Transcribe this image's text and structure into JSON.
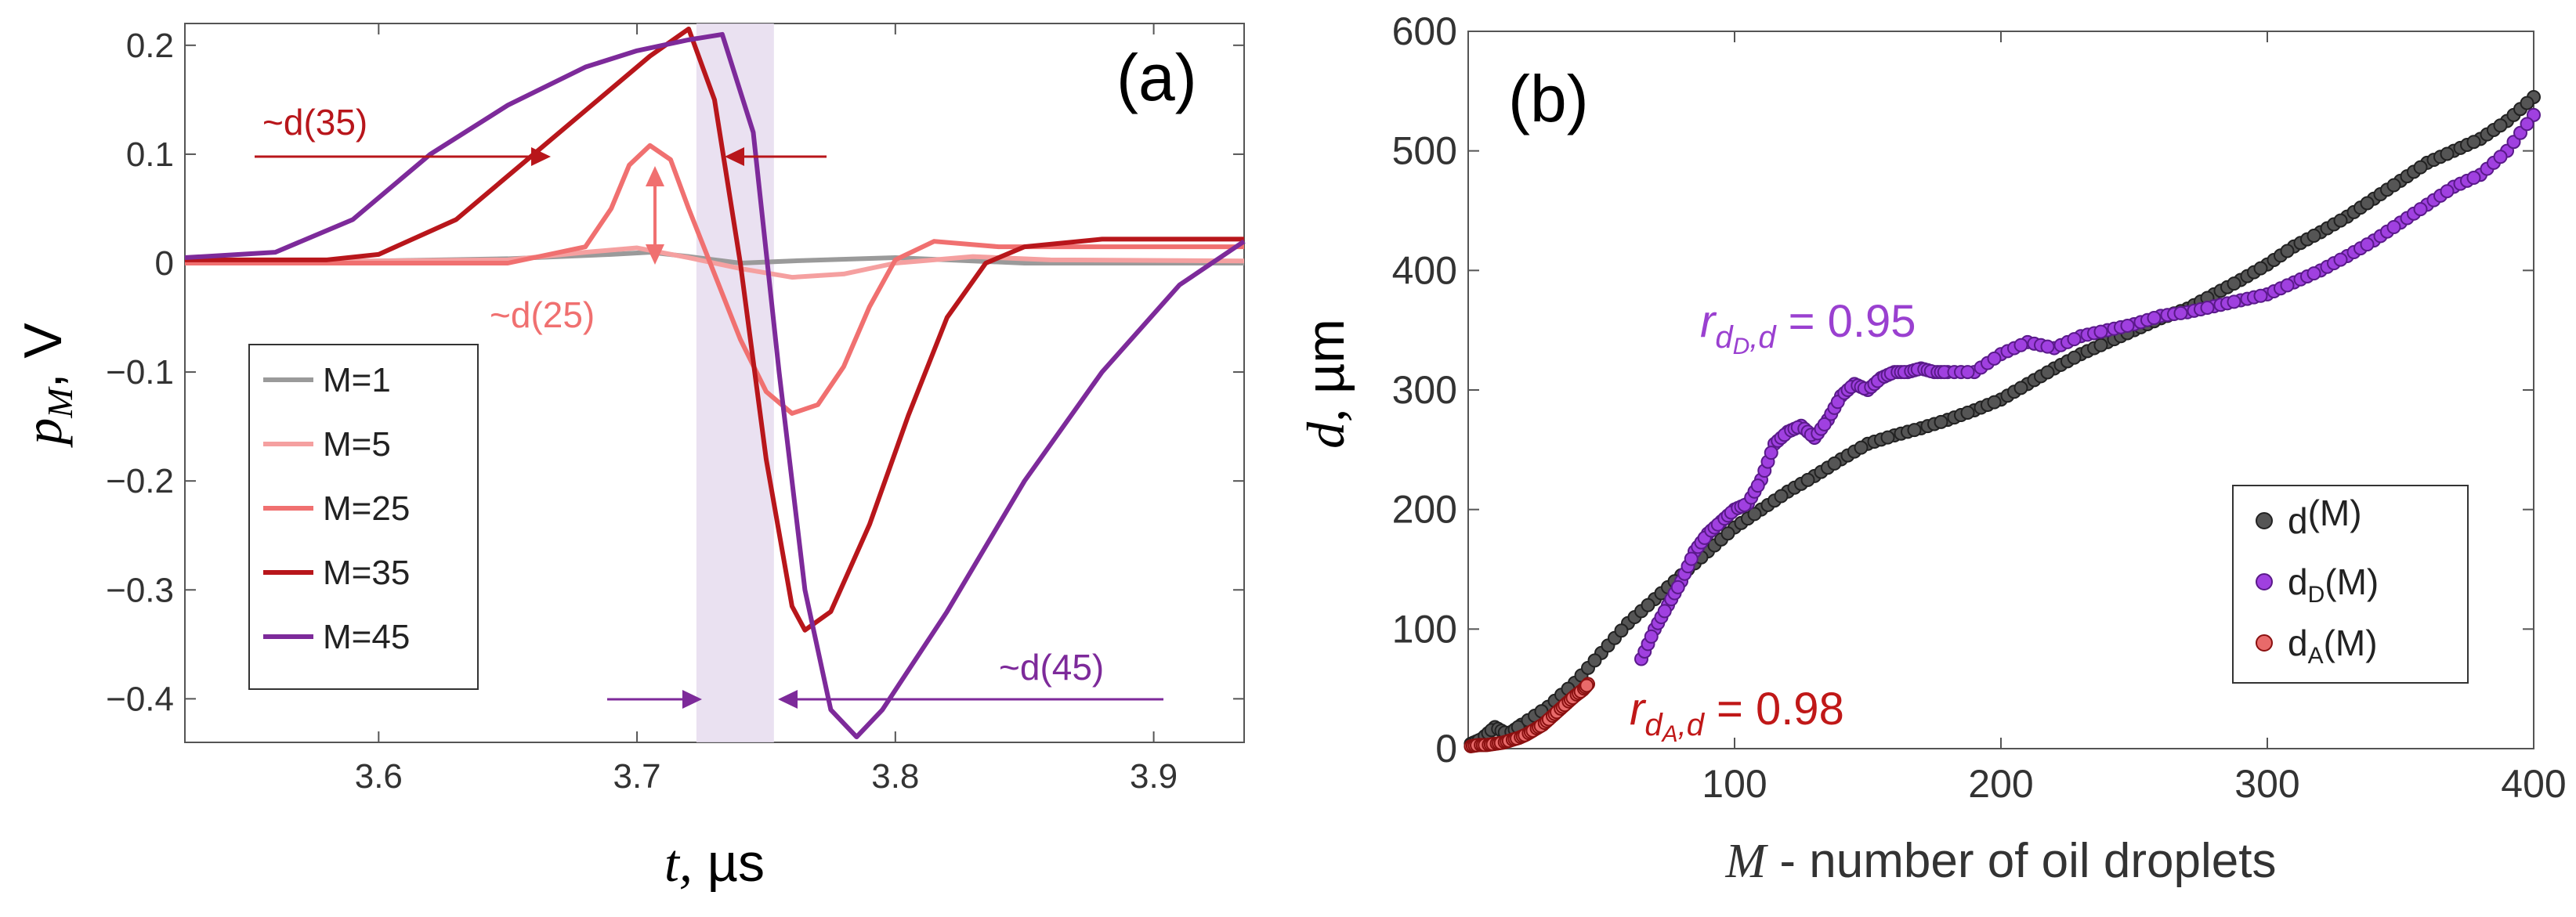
{
  "chart_data": [
    {
      "panel": "(a)",
      "type": "line",
      "ylabel_main": "p",
      "ylabel_sub": "M",
      "ylabel_unit": ", V",
      "xlabel_var": "t,",
      "xlabel_unit": " µs",
      "xlim": [
        3.525,
        3.935
      ],
      "ylim": [
        -0.44,
        0.22
      ],
      "xticks": [
        3.6,
        3.7,
        3.8,
        3.9
      ],
      "xticklabels": [
        "3.6",
        "3.7",
        "3.8",
        "3.9"
      ],
      "yticks": [
        0.2,
        0.1,
        0,
        -0.1,
        -0.2,
        -0.3,
        -0.4
      ],
      "yticklabels": [
        "0.2",
        "0.1",
        "0",
        "−0.1",
        "−0.2",
        "−0.3",
        "−0.4"
      ],
      "shaded_band": [
        3.723,
        3.753
      ],
      "series": [
        {
          "name": "M=1",
          "color": "#9a9a9a",
          "x": [
            3.525,
            3.6,
            3.65,
            3.69,
            3.705,
            3.72,
            3.74,
            3.76,
            3.8,
            3.85,
            3.935
          ],
          "y": [
            0.0,
            0.002,
            0.004,
            0.008,
            0.01,
            0.006,
            0.0,
            0.002,
            0.005,
            0.0,
            0.0
          ]
        },
        {
          "name": "M=5",
          "color": "#f5a0a0",
          "x": [
            3.525,
            3.6,
            3.65,
            3.68,
            3.7,
            3.72,
            3.74,
            3.76,
            3.78,
            3.8,
            3.83,
            3.86,
            3.935
          ],
          "y": [
            0.002,
            0.002,
            0.003,
            0.01,
            0.014,
            0.005,
            -0.005,
            -0.013,
            -0.01,
            0.0,
            0.006,
            0.003,
            0.002
          ]
        },
        {
          "name": "M=25",
          "color": "#f07070",
          "x": [
            3.525,
            3.65,
            3.68,
            3.69,
            3.697,
            3.705,
            3.713,
            3.72,
            3.73,
            3.74,
            3.75,
            3.76,
            3.77,
            3.78,
            3.79,
            3.8,
            3.815,
            3.84,
            3.935
          ],
          "y": [
            0.0,
            0.0,
            0.015,
            0.05,
            0.09,
            0.108,
            0.095,
            0.05,
            -0.01,
            -0.07,
            -0.118,
            -0.138,
            -0.13,
            -0.095,
            -0.04,
            0.003,
            0.02,
            0.015,
            0.015
          ]
        },
        {
          "name": "M=35",
          "color": "#b8161b",
          "x": [
            3.525,
            3.58,
            3.6,
            3.63,
            3.66,
            3.69,
            3.705,
            3.72,
            3.73,
            3.74,
            3.75,
            3.76,
            3.765,
            3.775,
            3.79,
            3.805,
            3.82,
            3.835,
            3.85,
            3.88,
            3.935
          ],
          "y": [
            0.003,
            0.003,
            0.008,
            0.04,
            0.1,
            0.16,
            0.19,
            0.215,
            0.15,
            0.0,
            -0.18,
            -0.315,
            -0.337,
            -0.32,
            -0.24,
            -0.14,
            -0.05,
            0.0,
            0.015,
            0.022,
            0.022
          ]
        },
        {
          "name": "M=45",
          "color": "#7d2a9a",
          "x": [
            3.525,
            3.56,
            3.59,
            3.62,
            3.65,
            3.68,
            3.7,
            3.72,
            3.733,
            3.745,
            3.755,
            3.765,
            3.775,
            3.785,
            3.795,
            3.82,
            3.85,
            3.88,
            3.91,
            3.935
          ],
          "y": [
            0.005,
            0.01,
            0.04,
            0.1,
            0.145,
            0.18,
            0.195,
            0.205,
            0.21,
            0.12,
            -0.1,
            -0.3,
            -0.41,
            -0.435,
            -0.41,
            -0.32,
            -0.2,
            -0.1,
            -0.02,
            0.02
          ]
        }
      ],
      "annotations": [
        {
          "text": "~d(35)",
          "color": "#b8161b"
        },
        {
          "text": "~d(25)",
          "color": "#f07070"
        },
        {
          "text": "~d(45)",
          "color": "#7d2a9a"
        }
      ],
      "panel_label": "(a)",
      "legend_location": "lower-left"
    },
    {
      "panel": "(b)",
      "type": "scatter",
      "ylabel_var": "d,",
      "ylabel_unit": " µm",
      "xlabel_var": "M",
      "xlabel_rest": " - number of oil droplets",
      "xlim": [
        0,
        400
      ],
      "ylim": [
        0,
        600
      ],
      "xticks": [
        100,
        200,
        300,
        400
      ],
      "xticklabels": [
        "100",
        "200",
        "300",
        "400"
      ],
      "yticks": [
        0,
        100,
        200,
        300,
        400,
        500,
        600
      ],
      "yticklabels": [
        "0",
        "100",
        "200",
        "300",
        "400",
        "500",
        "600"
      ],
      "series": [
        {
          "name": "d(M)",
          "label_main": "d",
          "label_sub": "",
          "label_rest": "(M)",
          "color": "#555555",
          "edge": "#222222",
          "x": [
            1,
            5,
            10,
            15,
            20,
            30,
            40,
            50,
            60,
            70,
            80,
            90,
            100,
            110,
            120,
            130,
            140,
            150,
            160,
            170,
            180,
            190,
            200,
            210,
            220,
            230,
            240,
            250,
            260,
            270,
            280,
            290,
            300,
            310,
            320,
            330,
            340,
            350,
            360,
            370,
            380,
            390,
            400
          ],
          "y": [
            4,
            8,
            18,
            12,
            20,
            35,
            55,
            80,
            105,
            125,
            145,
            165,
            185,
            200,
            215,
            228,
            242,
            255,
            262,
            268,
            275,
            283,
            292,
            305,
            318,
            330,
            340,
            350,
            360,
            368,
            380,
            392,
            405,
            420,
            432,
            445,
            460,
            475,
            490,
            500,
            510,
            525,
            545
          ]
        },
        {
          "name": "dD(M)",
          "label_main": "d",
          "label_sub": "D",
          "label_rest": "(M)",
          "color": "#a040e0",
          "edge": "#5a1a8a",
          "x": [
            65,
            70,
            75,
            80,
            85,
            90,
            95,
            100,
            105,
            110,
            115,
            120,
            125,
            130,
            135,
            140,
            145,
            150,
            155,
            160,
            165,
            170,
            175,
            180,
            190,
            200,
            210,
            220,
            230,
            240,
            250,
            260,
            270,
            280,
            290,
            300,
            310,
            320,
            330,
            340,
            350,
            360,
            370,
            380,
            390,
            400
          ],
          "y": [
            75,
            100,
            120,
            140,
            165,
            180,
            190,
            200,
            205,
            225,
            255,
            265,
            270,
            260,
            275,
            295,
            305,
            300,
            310,
            315,
            315,
            318,
            315,
            315,
            315,
            330,
            340,
            335,
            345,
            350,
            355,
            362,
            365,
            370,
            375,
            380,
            390,
            400,
            412,
            425,
            440,
            455,
            470,
            480,
            500,
            530
          ]
        },
        {
          "name": "dA(M)",
          "label_main": "d",
          "label_sub": "A",
          "label_rest": "(M)",
          "color": "#e86a6a",
          "edge": "#8a1010",
          "x": [
            1,
            4,
            7,
            10,
            13,
            16,
            19,
            22,
            25,
            28,
            31,
            34,
            37,
            40,
            43,
            45
          ],
          "y": [
            2,
            3,
            3,
            4,
            5,
            7,
            9,
            12,
            16,
            20,
            26,
            32,
            38,
            44,
            49,
            54
          ]
        }
      ],
      "annotations": [
        {
          "sym": "r",
          "sub": "d",
          "subsub": "D",
          "rest": ",d",
          "value": "= 0.95",
          "color": "#9a40d0"
        },
        {
          "sym": "r",
          "sub": "d",
          "subsub": "A",
          "rest": ",d",
          "value": "= 0.98",
          "color": "#c01818"
        }
      ],
      "panel_label": "(b)",
      "legend_location": "lower-right"
    }
  ]
}
